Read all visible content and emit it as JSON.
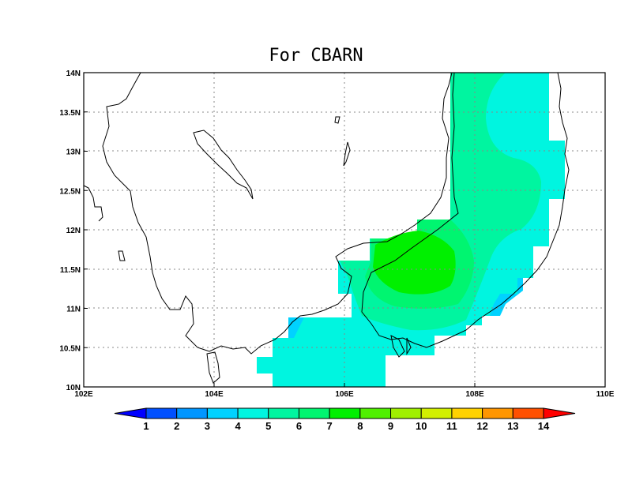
{
  "title": "For CBARN",
  "lon_ticks": [
    "102E",
    "104E",
    "106E",
    "108E",
    "110E"
  ],
  "lat_ticks": [
    "10N",
    "10.5N",
    "11N",
    "11.5N",
    "12N",
    "12.5N",
    "13N",
    "13.5N",
    "14N"
  ],
  "colorbar": {
    "labels": [
      "1",
      "2",
      "3",
      "4",
      "5",
      "6",
      "7",
      "8",
      "9",
      "10",
      "11",
      "12",
      "13",
      "14"
    ],
    "colors": [
      "#0000ff",
      "#0050ff",
      "#0096ff",
      "#00d2ff",
      "#00f5e0",
      "#00f5a0",
      "#00f570",
      "#00f000",
      "#50f000",
      "#a0f000",
      "#d2f000",
      "#ffd200",
      "#ff9600",
      "#ff5000",
      "#ff0000"
    ]
  },
  "map": {
    "lon_range": [
      102,
      110
    ],
    "lat_range": [
      10,
      14
    ],
    "grid": "dotted",
    "fill_colors": {
      "c3": "#00d2ff",
      "c4": "#00f5e0",
      "c5": "#00f5a0",
      "c6": "#00f570",
      "c7": "#00f000"
    }
  }
}
